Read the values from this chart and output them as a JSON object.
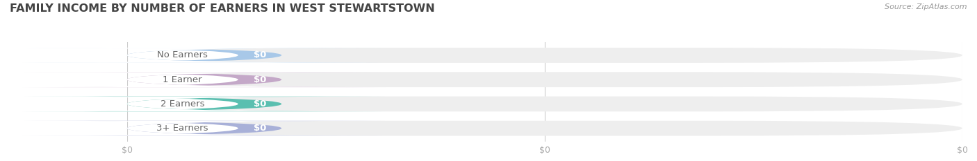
{
  "title": "FAMILY INCOME BY NUMBER OF EARNERS IN WEST STEWARTSTOWN",
  "source": "Source: ZipAtlas.com",
  "categories": [
    "No Earners",
    "1 Earner",
    "2 Earners",
    "3+ Earners"
  ],
  "values": [
    0,
    0,
    0,
    0
  ],
  "bar_colors": [
    "#a8c8e8",
    "#c4a8c8",
    "#5abfb0",
    "#a8b0d8"
  ],
  "background_color": "#ffffff",
  "bar_bg_color": "#eeeeee",
  "value_labels": [
    "$0",
    "$0",
    "$0",
    "$0"
  ],
  "x_tick_labels": [
    "$0",
    "$0",
    "$0"
  ],
  "tick_color": "#aaaaaa",
  "grid_color": "#cccccc",
  "title_color": "#444444",
  "source_color": "#999999",
  "label_text_color": "#666666"
}
